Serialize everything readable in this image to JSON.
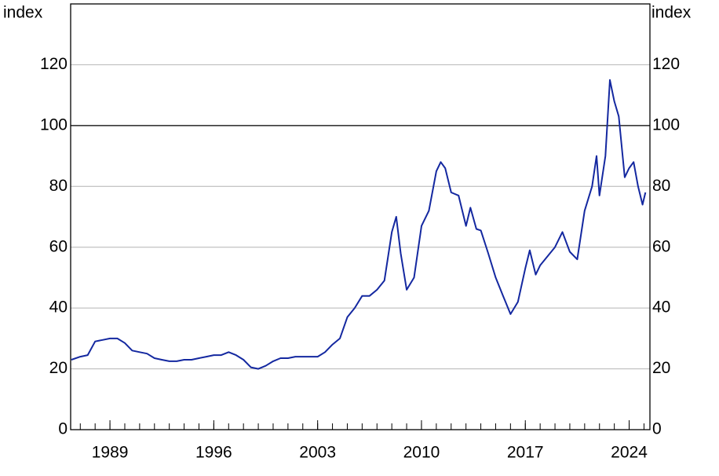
{
  "chart_data": {
    "type": "line",
    "ylabel": "index",
    "y2label": "index",
    "xlim": [
      1986.35,
      2025.4
    ],
    "xticks": [
      1989,
      1996,
      2003,
      2010,
      2017,
      2024
    ],
    "xminorticks": [
      1987,
      1988,
      1989,
      1990,
      1991,
      1992,
      1993,
      1994,
      1995,
      1996,
      1997,
      1998,
      1999,
      2000,
      2001,
      2002,
      2003,
      2004,
      2005,
      2006,
      2007,
      2008,
      2009,
      2010,
      2011,
      2012,
      2013,
      2014,
      2015,
      2016,
      2017,
      2018,
      2019,
      2020,
      2021,
      2022,
      2023,
      2024,
      2025
    ],
    "ylim": [
      0,
      140
    ],
    "yticks": [
      0,
      20,
      40,
      60,
      80,
      100,
      120
    ],
    "y2lim": [
      0,
      140
    ],
    "y2ticks": [
      0,
      20,
      40,
      60,
      80,
      100,
      120
    ],
    "grid": true,
    "reference_line": 100,
    "series": [
      {
        "color": "#1428a0",
        "x": [
          1986.4,
          1987,
          1987.5,
          1988,
          1988.5,
          1989,
          1989.5,
          1990,
          1990.5,
          1991,
          1991.5,
          1992,
          1992.5,
          1993,
          1993.5,
          1994,
          1994.5,
          1995,
          1995.5,
          1996,
          1996.5,
          1997,
          1997.5,
          1998,
          1998.5,
          1999,
          1999.5,
          2000,
          2000.5,
          2001,
          2001.5,
          2002,
          2002.5,
          2003,
          2003.5,
          2004,
          2004.5,
          2005,
          2005.5,
          2006,
          2006.5,
          2007,
          2007.5,
          2008,
          2008.3,
          2008.6,
          2009,
          2009.5,
          2010,
          2010.5,
          2011,
          2011.3,
          2011.6,
          2012,
          2012.5,
          2013,
          2013.3,
          2013.7,
          2014,
          2014.5,
          2015,
          2015.5,
          2016,
          2016.5,
          2017,
          2017.3,
          2017.7,
          2018,
          2018.5,
          2019,
          2019.5,
          2020,
          2020.5,
          2021,
          2021.5,
          2021.8,
          2022,
          2022.4,
          2022.7,
          2023,
          2023.3,
          2023.7,
          2024,
          2024.3,
          2024.6,
          2024.9,
          2025.1
        ],
        "values": [
          23,
          24,
          24.5,
          29,
          29.5,
          30,
          30,
          28.5,
          26,
          25.5,
          25,
          23.5,
          23,
          22.5,
          22.5,
          23,
          23,
          23.5,
          24,
          24.5,
          24.5,
          25.5,
          24.5,
          23,
          20.5,
          20,
          21,
          22.5,
          23.5,
          23.5,
          24,
          24,
          24,
          24,
          25.5,
          28,
          30,
          37,
          40,
          44,
          44,
          46,
          49,
          65,
          70,
          58,
          46,
          50,
          67,
          72,
          85,
          88,
          86,
          78,
          77,
          67,
          73,
          66,
          65.5,
          58,
          50,
          44,
          38,
          42,
          53,
          59,
          51,
          54,
          57,
          60,
          65,
          58.5,
          56,
          72,
          80,
          90,
          77,
          90,
          115,
          108,
          103,
          83,
          86,
          88,
          80,
          74,
          78
        ]
      }
    ]
  }
}
